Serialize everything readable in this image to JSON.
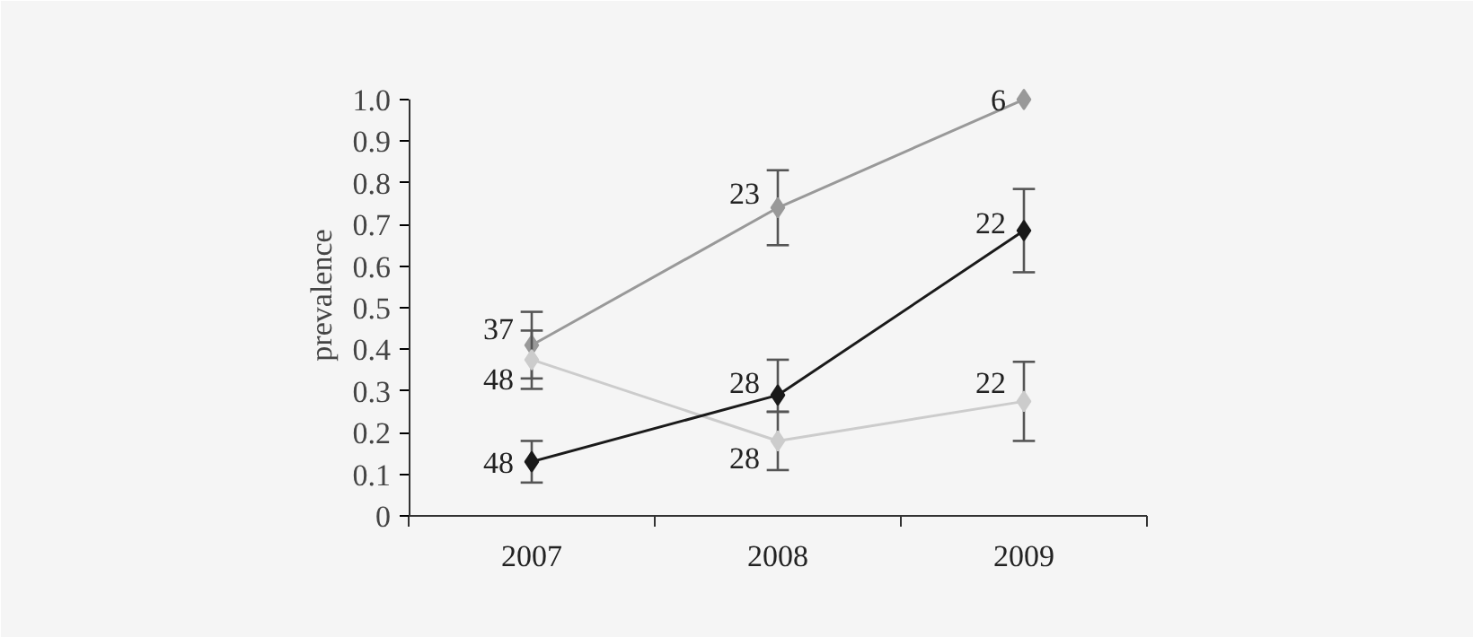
{
  "chart_data": {
    "type": "line",
    "ylabel": "prevalence",
    "categories": [
      "2007",
      "2008",
      "2009"
    ],
    "series": [
      {
        "color": "#999999",
        "values": [
          0.41,
          0.74,
          1.0
        ],
        "errors": [
          0.08,
          0.09,
          null
        ]
      },
      {
        "color": "#cccccc",
        "values": [
          0.375,
          0.18,
          0.275
        ],
        "errors": [
          0.07,
          0.07,
          0.095
        ]
      },
      {
        "color": "#1a1a1a",
        "values": [
          0.13,
          0.29,
          0.685
        ],
        "errors": [
          0.05,
          [
            0.25,
            0.375
          ],
          0.1
        ]
      }
    ],
    "ylim": [
      0,
      1.0
    ],
    "yticks": [
      0,
      {
        "value": 0.1,
        "label": "0.1"
      },
      {
        "value": 0.2,
        "label": "0.2"
      },
      {
        "value": 0.3,
        "label": "0.3"
      },
      {
        "value": 0.4,
        "label": "0.4"
      },
      {
        "value": 0.5,
        "label": "0.5"
      },
      {
        "value": 0.6,
        "label": "0.6"
      },
      {
        "value": 0.7,
        "label": "0.7"
      },
      {
        "value": 0.8,
        "label": "0.8"
      },
      {
        "value": 0.9,
        "label": "0.9"
      },
      {
        "value": 1.0,
        "label": "1.0"
      }
    ],
    "marker": "diamond",
    "grid": false,
    "annotations": [
      {
        "text": "37",
        "x": "2007",
        "y": 0.45
      },
      {
        "text": "48",
        "x": "2007",
        "y": 0.33
      },
      {
        "text": "48",
        "x": "2007",
        "y": 0.13
      },
      {
        "text": "23",
        "x": "2008",
        "y": 0.775
      },
      {
        "text": "28",
        "x": "2008",
        "y": 0.32
      },
      {
        "text": "28",
        "x": "2008",
        "y": 0.14
      },
      {
        "text": "6",
        "x": "2009",
        "y": 1.0
      },
      {
        "text": "22",
        "x": "2009",
        "y": 0.705
      },
      {
        "text": "22",
        "x": "2009",
        "y": 0.32
      }
    ]
  }
}
